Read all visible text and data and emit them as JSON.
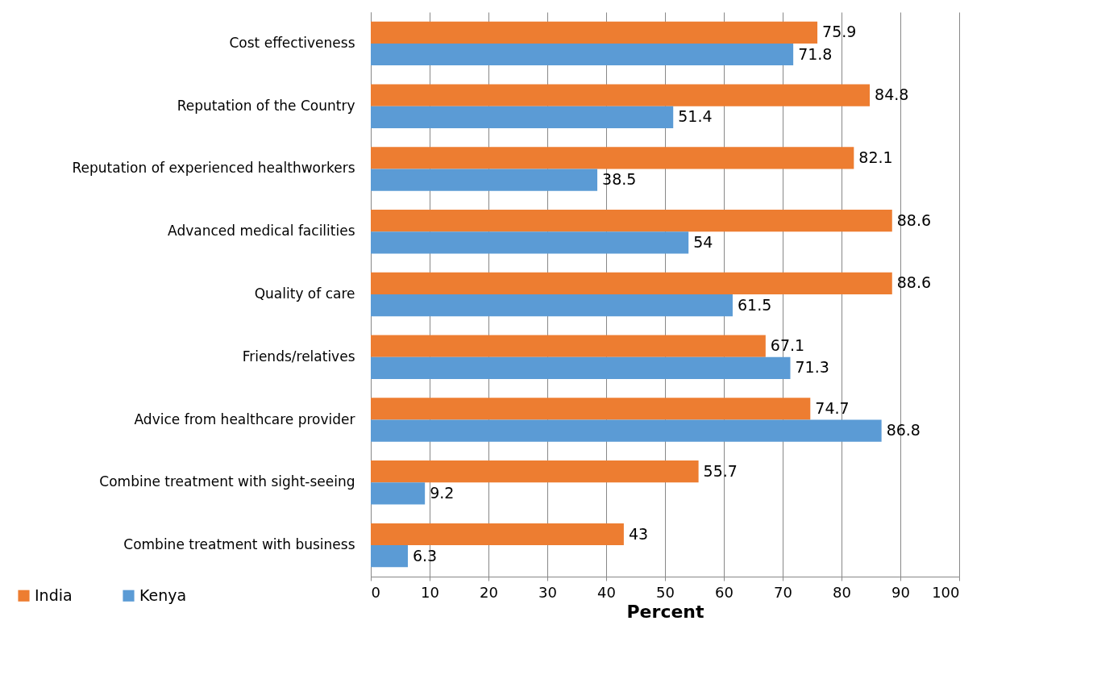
{
  "chart_data": {
    "type": "bar",
    "orientation": "horizontal",
    "xlabel": "Percent",
    "categories": [
      "Cost effectiveness",
      "Reputation of the Country",
      "Reputation of experienced healthworkers",
      "Advanced medical facilities",
      "Quality of care",
      "Friends/relatives",
      "Advice from healthcare provider",
      "Combine treatment with sight-seeing",
      "Combine treatment with business"
    ],
    "series": [
      {
        "name": "India",
        "color": "#ed7d31",
        "values": [
          75.9,
          84.8,
          82.1,
          88.6,
          88.6,
          67.1,
          74.7,
          55.7,
          43
        ]
      },
      {
        "name": "Kenya",
        "color": "#5b9bd5",
        "values": [
          71.8,
          51.4,
          38.5,
          54,
          61.5,
          71.3,
          86.8,
          9.2,
          6.3
        ]
      }
    ],
    "xlim": [
      0,
      100
    ],
    "xticks": [
      0,
      10,
      20,
      30,
      40,
      50,
      60,
      70,
      80,
      90,
      100
    ],
    "grid": "x",
    "legend": "bottom left",
    "data_labels": true
  }
}
